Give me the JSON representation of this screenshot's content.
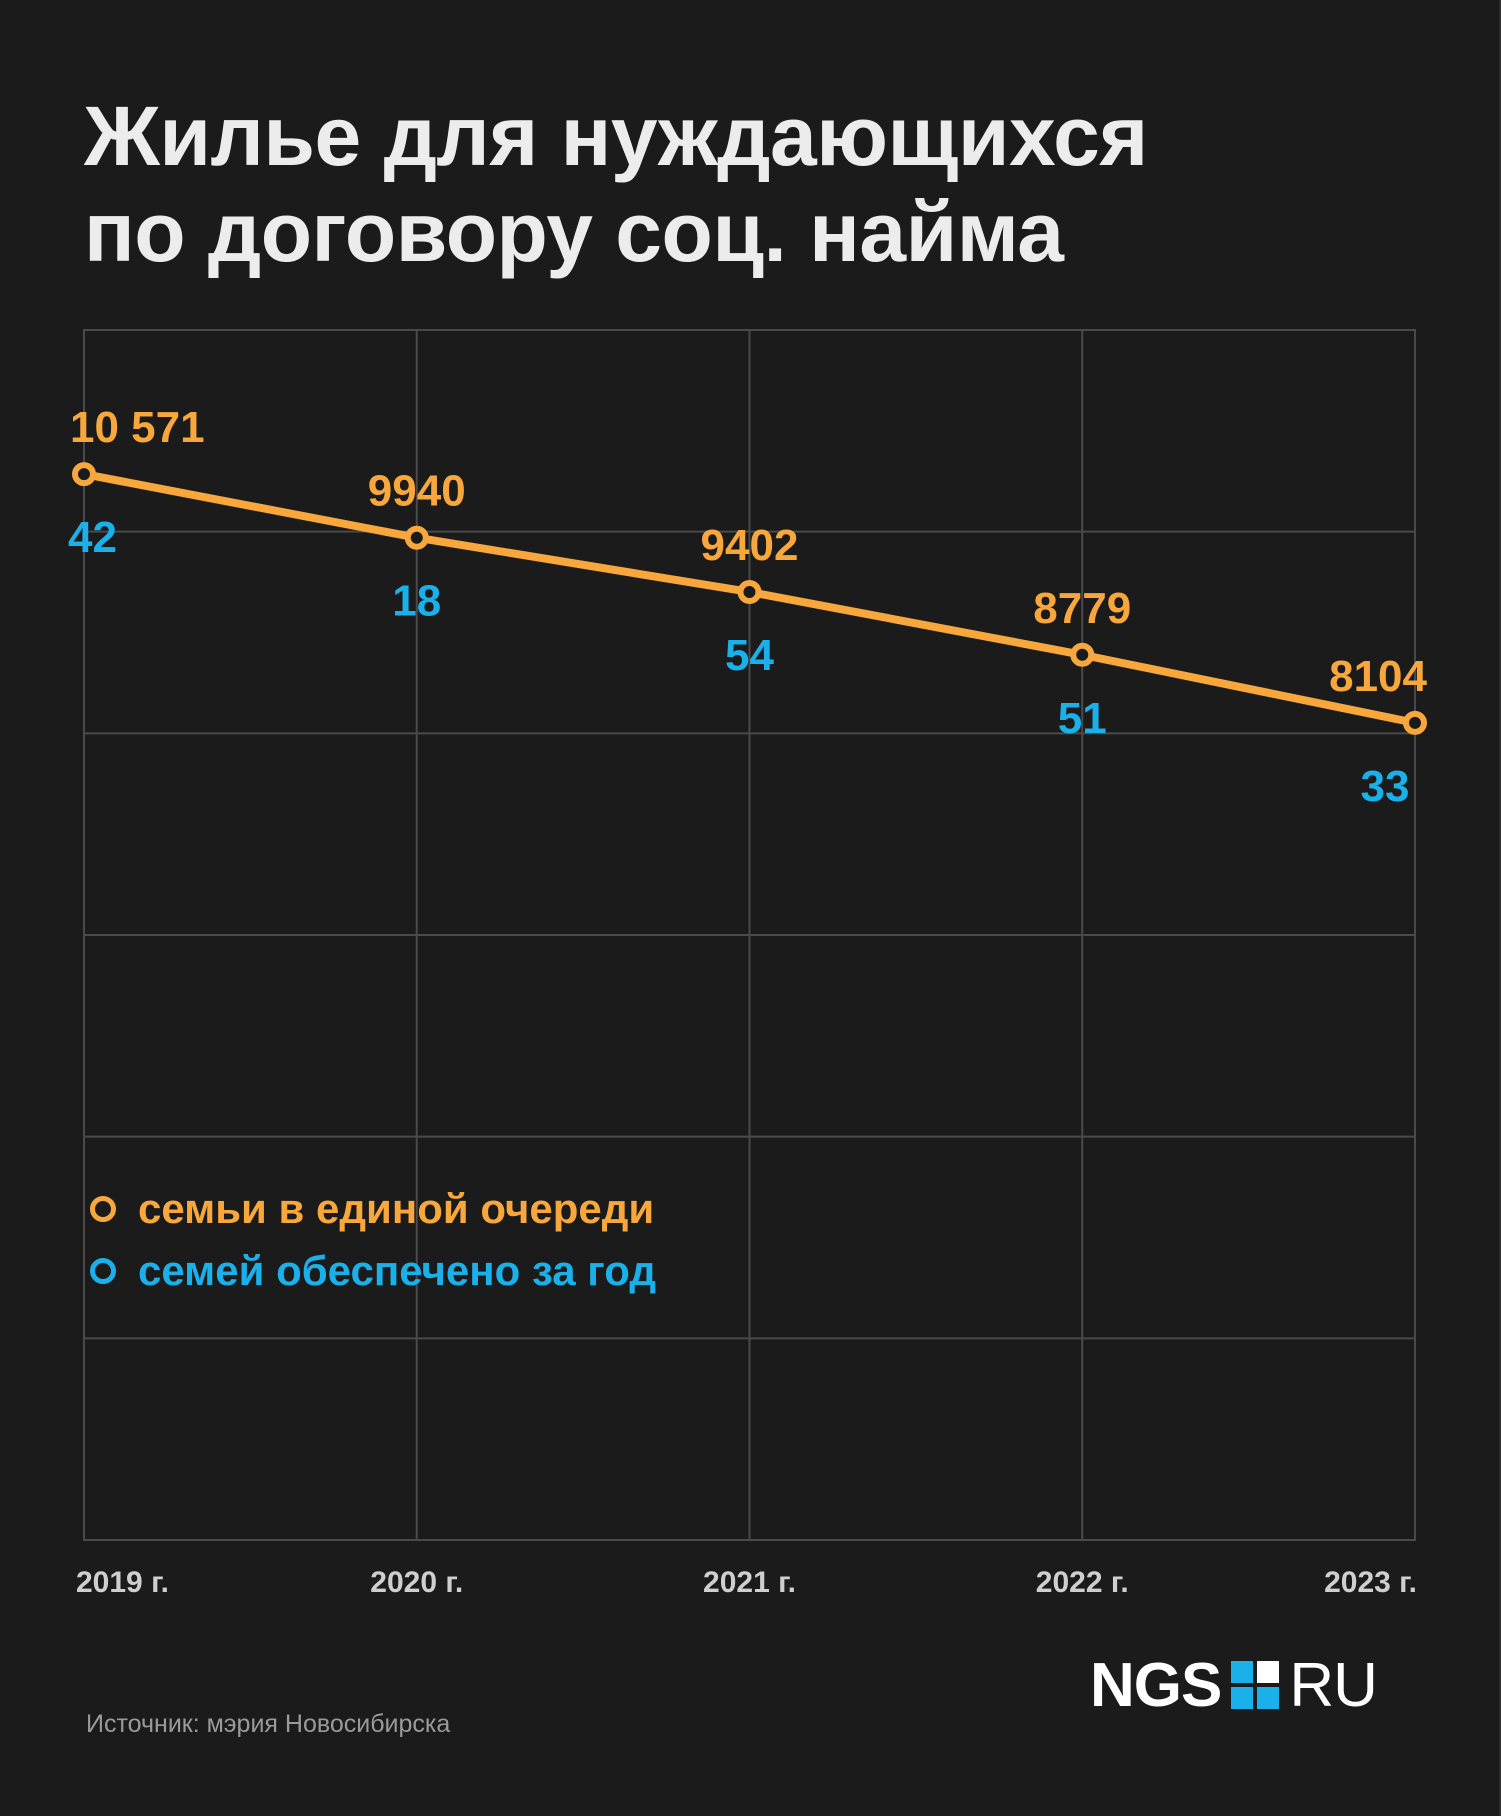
{
  "title_lines": [
    "Жилье для нуждающихся",
    "по договору соц. найма"
  ],
  "colors": {
    "queue": "#f7a73c",
    "provided": "#1ab1ea",
    "grid": "#4a4a4a",
    "axis_label": "#cfcfcf",
    "background": "#1b1b1b"
  },
  "legend": {
    "queue_label": "семьи в единой очереди",
    "provided_label": "семей обеспечено за год"
  },
  "source": "Источник: мэрия Новосибирска",
  "logo": {
    "left": "NGS",
    "right": "RU"
  },
  "chart_data": {
    "type": "line",
    "title": "Жилье для нуждающихся по договору соц. найма",
    "x": [
      "2019 г.",
      "2020 г.",
      "2021 г.",
      "2022 г.",
      "2023 г."
    ],
    "series": [
      {
        "name": "семьи в единой очереди",
        "values": [
          10571,
          9940,
          9402,
          8779,
          8104
        ],
        "labels": [
          "10 571",
          "9940",
          "9402",
          "8779",
          "8104"
        ]
      },
      {
        "name": "семей обеспечено за год",
        "values": [
          42,
          18,
          54,
          51,
          33
        ],
        "labels": [
          "42",
          "18",
          "54",
          "51",
          "33"
        ]
      }
    ],
    "ylim": [
      0,
      12000
    ],
    "grid": true,
    "legend_position": "left"
  }
}
